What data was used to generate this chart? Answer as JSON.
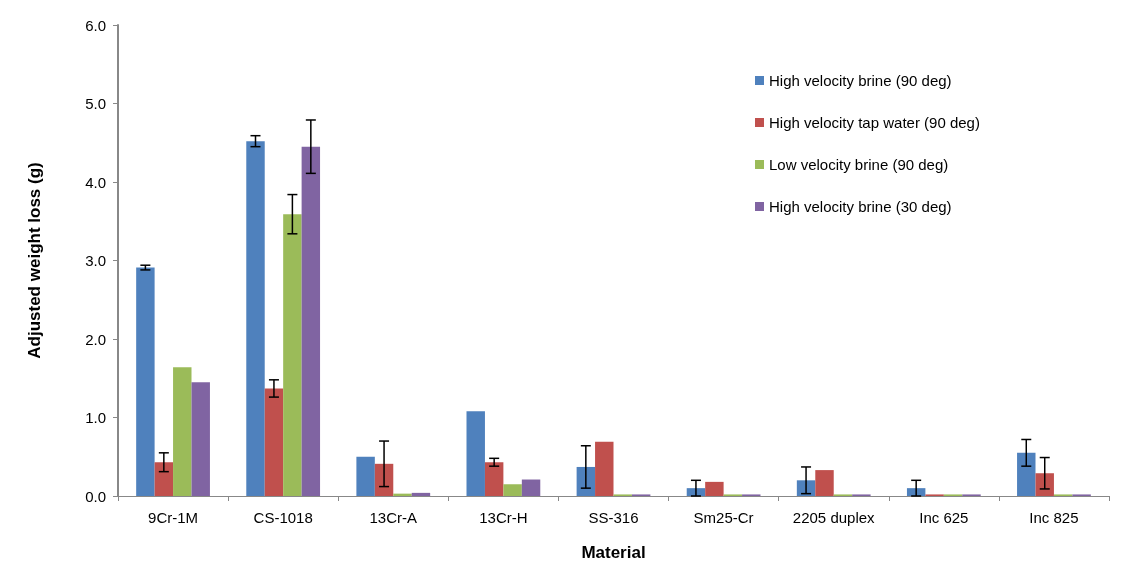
{
  "chart_data": {
    "type": "bar",
    "xlabel": "Material",
    "ylabel": "Adjusted weight loss (g)",
    "categories": [
      "9Cr-1M",
      "CS-1018",
      "13Cr-A",
      "13Cr-H",
      "SS-316",
      "Sm25-Cr",
      "2205 duplex",
      "Inc 625",
      "Inc 825"
    ],
    "series": [
      {
        "name": "High velocity brine (90 deg)",
        "color": "#4f81bd",
        "values": [
          2.91,
          4.52,
          0.5,
          1.08,
          0.37,
          0.1,
          0.2,
          0.1,
          0.55
        ],
        "errors": [
          0.03,
          0.07,
          null,
          null,
          0.27,
          0.1,
          0.17,
          0.1,
          0.17
        ]
      },
      {
        "name": "High velocity tap water (90 deg)",
        "color": "#c0504d",
        "values": [
          0.43,
          1.37,
          0.41,
          0.43,
          0.69,
          0.18,
          0.33,
          0.02,
          0.29
        ],
        "errors": [
          0.12,
          0.11,
          0.29,
          0.05,
          null,
          null,
          null,
          null,
          0.2
        ]
      },
      {
        "name": "Low velocity brine (90 deg)",
        "color": "#9bbb59",
        "values": [
          1.64,
          3.59,
          0.03,
          0.15,
          0.02,
          0.02,
          0.02,
          0.02,
          0.02
        ],
        "errors": [
          null,
          0.25,
          null,
          null,
          null,
          null,
          null,
          null,
          null
        ]
      },
      {
        "name": "High velocity brine (30 deg)",
        "color": "#8064a2",
        "values": [
          1.45,
          4.45,
          0.04,
          0.21,
          0.02,
          0.02,
          0.02,
          0.02,
          0.02
        ],
        "errors": [
          null,
          0.34,
          null,
          null,
          null,
          null,
          null,
          null,
          null
        ]
      }
    ],
    "ylim": [
      0,
      6
    ],
    "yticks": [
      {
        "value": 0,
        "label": "0.0"
      },
      {
        "value": 1,
        "label": "1.0"
      },
      {
        "value": 2,
        "label": "2.0"
      },
      {
        "value": 3,
        "label": "3.0"
      },
      {
        "value": 4,
        "label": "4.0"
      },
      {
        "value": 5,
        "label": "5.0"
      },
      {
        "value": 6,
        "label": "6.0"
      }
    ],
    "grid": false,
    "legend": "top right"
  }
}
